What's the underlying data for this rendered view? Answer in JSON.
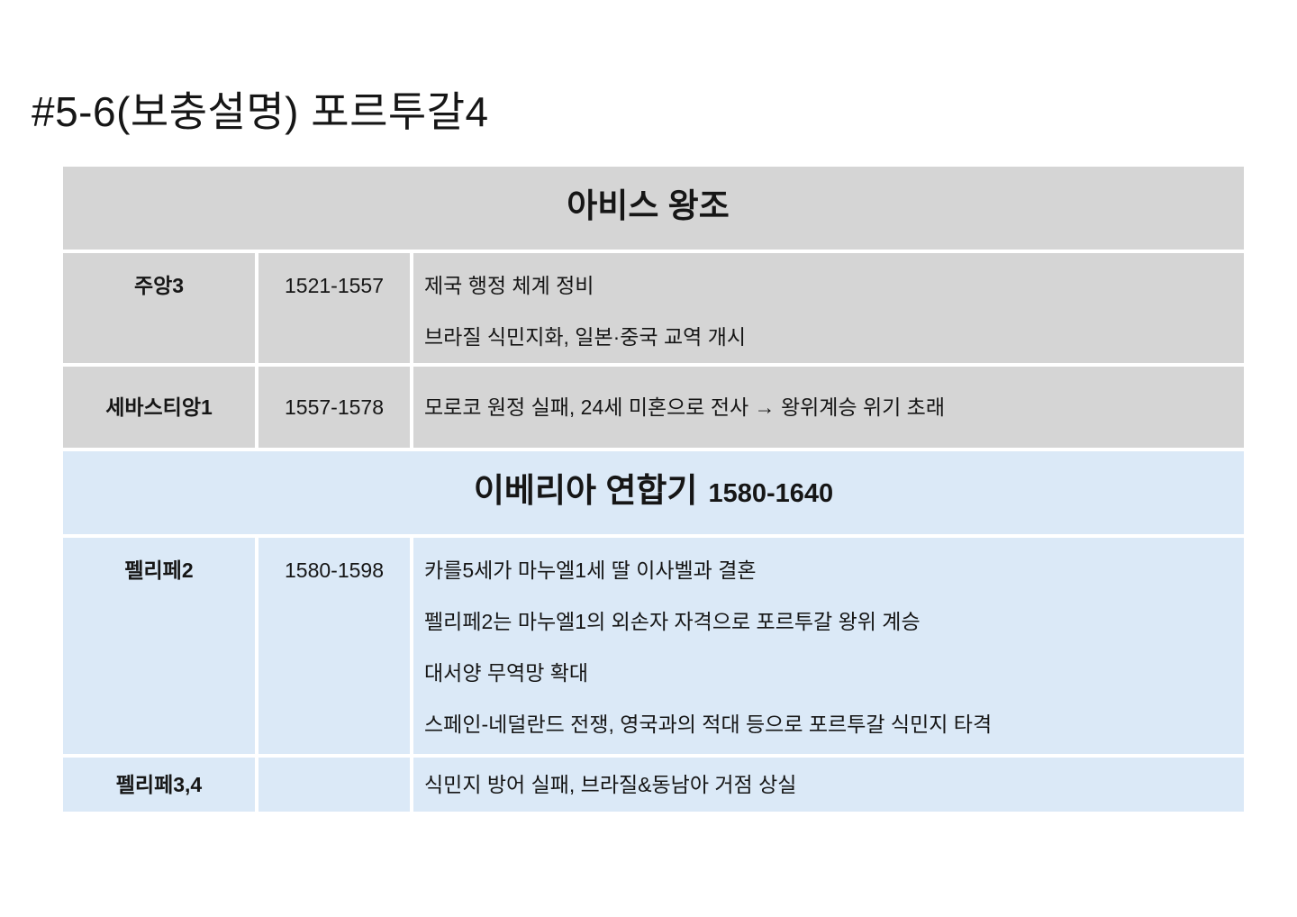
{
  "page": {
    "title": "#5-6(보충설명) 포르투갈4"
  },
  "colors": {
    "gray_bg": "#d5d5d5",
    "blue_bg": "#dbe9f7",
    "text": "#161616",
    "page_bg": "#ffffff"
  },
  "table": {
    "columns": [
      "ruler",
      "period",
      "description"
    ],
    "sections": [
      {
        "theme": "gray",
        "header": {
          "title": "아비스 왕조",
          "period": ""
        },
        "rows": [
          {
            "name": "주앙3",
            "period": "1521-1557",
            "lines": [
              "제국 행정 체계 정비",
              "브라질 식민지화, 일본·중국 교역 개시"
            ]
          },
          {
            "name": "세바스티앙1",
            "period": "1557-1578",
            "lines": [
              "모로코 원정 실패, 24세 미혼으로 전사 → 왕위계승 위기 초래"
            ]
          }
        ]
      },
      {
        "theme": "blue",
        "header": {
          "title": "이베리아 연합기",
          "period": "1580-1640"
        },
        "rows": [
          {
            "name": "펠리페2",
            "period": "1580-1598",
            "lines": [
              "카를5세가 마누엘1세 딸 이사벨과 결혼",
              "펠리페2는 마누엘1의 외손자 자격으로 포르투갈 왕위 계승",
              "대서양 무역망 확대",
              "스페인-네덜란드 전쟁, 영국과의 적대 등으로 포르투갈 식민지 타격"
            ]
          },
          {
            "name": "펠리페3,4",
            "period": "",
            "lines": [
              "식민지 방어 실패, 브라질&동남아 거점 상실"
            ]
          }
        ]
      }
    ]
  }
}
